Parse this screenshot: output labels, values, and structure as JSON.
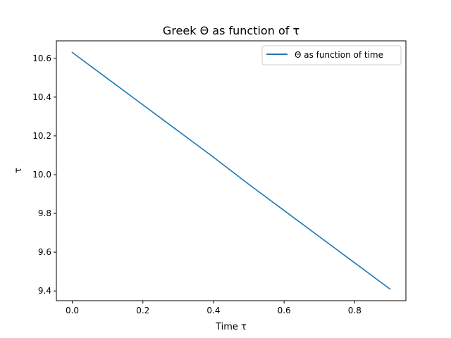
{
  "chart_data": {
    "type": "line",
    "title": "Greek Θ as function of τ",
    "xlabel": "Time τ",
    "ylabel": "τ",
    "xlim": [
      -0.045,
      0.945
    ],
    "ylim": [
      9.35,
      10.69
    ],
    "xticks": [
      0.0,
      0.2,
      0.4,
      0.6,
      0.8
    ],
    "xtick_labels": [
      "0.0",
      "0.2",
      "0.4",
      "0.6",
      "0.8"
    ],
    "yticks": [
      9.4,
      9.6,
      9.8,
      10.0,
      10.2,
      10.4,
      10.6
    ],
    "ytick_labels": [
      "9.4",
      "9.6",
      "9.8",
      "10.0",
      "10.2",
      "10.4",
      "10.6"
    ],
    "grid": false,
    "legend_position": "top-right",
    "series": [
      {
        "name": "Θ as function of time",
        "color": "#1f77b4",
        "x": [
          0.0,
          0.1,
          0.2,
          0.3,
          0.4,
          0.5,
          0.6,
          0.7,
          0.8,
          0.9
        ],
        "y": [
          10.63,
          10.495,
          10.36,
          10.225,
          10.09,
          9.95,
          9.815,
          9.68,
          9.545,
          9.41
        ]
      }
    ]
  }
}
